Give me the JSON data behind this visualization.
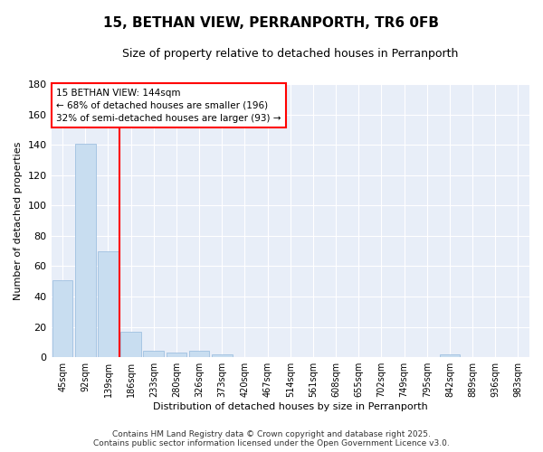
{
  "title_line1": "15, BETHAN VIEW, PERRANPORTH, TR6 0FB",
  "title_line2": "Size of property relative to detached houses in Perranporth",
  "xlabel": "Distribution of detached houses by size in Perranporth",
  "ylabel": "Number of detached properties",
  "categories": [
    "45sqm",
    "92sqm",
    "139sqm",
    "186sqm",
    "233sqm",
    "280sqm",
    "326sqm",
    "373sqm",
    "420sqm",
    "467sqm",
    "514sqm",
    "561sqm",
    "608sqm",
    "655sqm",
    "702sqm",
    "749sqm",
    "795sqm",
    "842sqm",
    "889sqm",
    "936sqm",
    "983sqm"
  ],
  "values": [
    51,
    141,
    70,
    17,
    4,
    3,
    4,
    2,
    0,
    0,
    0,
    0,
    0,
    0,
    0,
    0,
    0,
    2,
    0,
    0,
    0
  ],
  "bar_color": "#c8ddf0",
  "bar_edge_color": "#a0c0e0",
  "ylim": [
    0,
    180
  ],
  "yticks": [
    0,
    20,
    40,
    60,
    80,
    100,
    120,
    140,
    160,
    180
  ],
  "red_line_x": 2.5,
  "annotation_line1": "15 BETHAN VIEW: 144sqm",
  "annotation_line2": "← 68% of detached houses are smaller (196)",
  "annotation_line3": "32% of semi-detached houses are larger (93) →",
  "fig_bg_color": "#ffffff",
  "plot_bg_color": "#e8eef8",
  "grid_color": "#ffffff",
  "footer_line1": "Contains HM Land Registry data © Crown copyright and database right 2025.",
  "footer_line2": "Contains public sector information licensed under the Open Government Licence v3.0."
}
